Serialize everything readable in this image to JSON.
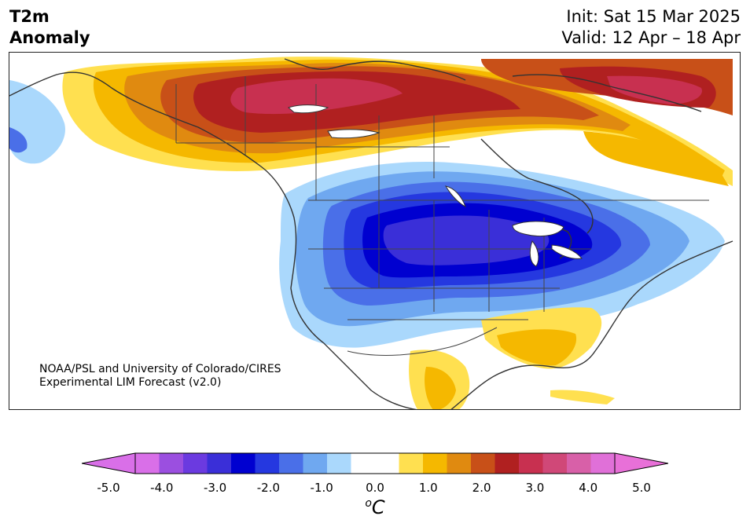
{
  "header": {
    "variable": "T2m",
    "field": "Anomaly",
    "init": "Init: Sat 15 Mar 2025",
    "valid": "Valid: 12 Apr – 18 Apr"
  },
  "credit": {
    "line1": "NOAA/PSL and University of Colorado/CIRES",
    "line2": "Experimental LIM Forecast (v2.0)"
  },
  "colorbar": {
    "unit_base": "C",
    "unit_super": "o",
    "ticks": [
      "-5.0",
      "-4.0",
      "-3.0",
      "-2.0",
      "-1.0",
      "0.0",
      "1.0",
      "2.0",
      "3.0",
      "4.0",
      "5.0"
    ],
    "colors": [
      "#d96fe8",
      "#9b4fe0",
      "#6b3ae0",
      "#3a2fd8",
      "#0000d0",
      "#2538e0",
      "#4a6fe8",
      "#6fa8f0",
      "#aad8fc",
      "#ffffff",
      "#ffffff",
      "#ffe050",
      "#f5b800",
      "#e08a10",
      "#c85018",
      "#b02020",
      "#c83050",
      "#d04878",
      "#d860a8",
      "#e070d8"
    ],
    "under_color": "#d96fe8",
    "over_color": "#e870d8"
  },
  "map": {
    "region": "North America",
    "land_color": "#ffffff",
    "border_color": "#333333"
  }
}
